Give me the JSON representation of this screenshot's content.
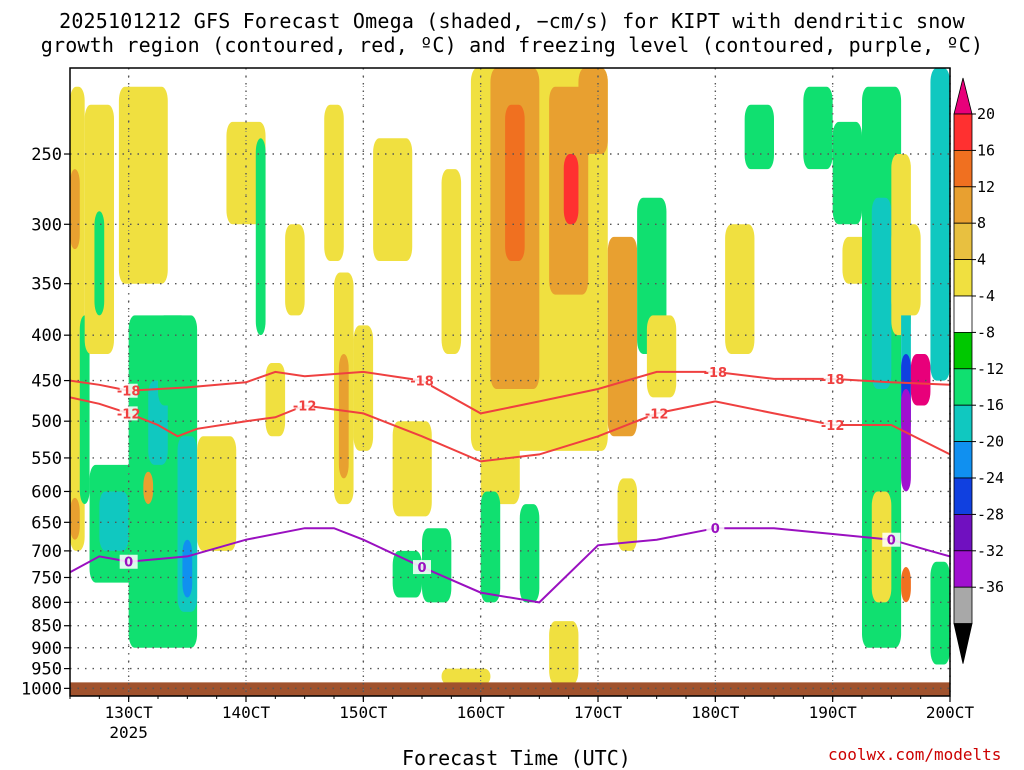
{
  "title_line1": "2025101212 GFS Forecast Omega (shaded, −cm/s) for KIPT with dendritic snow",
  "title_line2": "growth region (contoured, red, ºC) and freezing level (contoured, purple, ºC)",
  "x_axis_label": "Forecast Time (UTC)",
  "credit": "coolwx.com/modelts",
  "chart_data": {
    "type": "heatmap",
    "y_axis": {
      "unit": "hPa",
      "scale": "log-pressure",
      "range": [
        1020,
        200
      ],
      "ticks": [
        250,
        300,
        350,
        400,
        450,
        500,
        550,
        600,
        650,
        700,
        750,
        800,
        850,
        900,
        950,
        1000
      ]
    },
    "x_axis": {
      "unit": "hours since 2025-10-12 12UTC",
      "range": [
        0,
        180
      ],
      "ticks": [
        {
          "h": 12,
          "label": "130CT",
          "sub": "2025"
        },
        {
          "h": 36,
          "label": "140CT",
          "sub": ""
        },
        {
          "h": 60,
          "label": "150CT",
          "sub": ""
        },
        {
          "h": 84,
          "label": "160CT",
          "sub": ""
        },
        {
          "h": 108,
          "label": "170CT",
          "sub": ""
        },
        {
          "h": 132,
          "label": "180CT",
          "sub": ""
        },
        {
          "h": 156,
          "label": "190CT",
          "sub": ""
        },
        {
          "h": 180,
          "label": "200CT",
          "sub": ""
        }
      ]
    },
    "colorbar": {
      "labels": [
        "20",
        "16",
        "12",
        "8",
        "4",
        "-4",
        "-8",
        "-12",
        "-16",
        "-20",
        "-24",
        "-28",
        "-32",
        "-36"
      ],
      "colors": [
        "#e8007a",
        "#ff3030",
        "#f07020",
        "#e8a030",
        "#e8c040",
        "#f0e040",
        "#ffffff",
        "#00c800",
        "#10e070",
        "#10c8c0",
        "#1090f0",
        "#1040e0",
        "#7010c0",
        "#a010d0",
        "#a8a8a8",
        "#000000"
      ]
    },
    "ground_color": "#a0522d",
    "omega_regions": [
      {
        "h0": 0,
        "h1": 3,
        "p0": 210,
        "p1": 700,
        "v": 5
      },
      {
        "h0": 0,
        "h1": 2,
        "p0": 260,
        "p1": 320,
        "v": 9
      },
      {
        "h0": 2,
        "h1": 4,
        "p0": 380,
        "p1": 620,
        "v": -9
      },
      {
        "h0": 3,
        "h1": 9,
        "p0": 220,
        "p1": 420,
        "v": 5
      },
      {
        "h0": 5,
        "h1": 7,
        "p0": 290,
        "p1": 380,
        "v": -9
      },
      {
        "h0": 4,
        "h1": 14,
        "p0": 560,
        "p1": 760,
        "v": -10
      },
      {
        "h0": 6,
        "h1": 12,
        "p0": 600,
        "p1": 700,
        "v": -14
      },
      {
        "h0": 0,
        "h1": 2,
        "p0": 610,
        "p1": 680,
        "v": 9
      },
      {
        "h0": 12,
        "h1": 26,
        "p0": 380,
        "p1": 900,
        "v": -9
      },
      {
        "h0": 16,
        "h1": 20,
        "p0": 450,
        "p1": 560,
        "v": -14
      },
      {
        "h0": 22,
        "h1": 26,
        "p0": 520,
        "p1": 820,
        "v": -14
      },
      {
        "h0": 23,
        "h1": 25,
        "p0": 680,
        "p1": 790,
        "v": -17
      },
      {
        "h0": 15,
        "h1": 17,
        "p0": 570,
        "p1": 620,
        "v": 9
      },
      {
        "h0": 10,
        "h1": 20,
        "p0": 210,
        "p1": 350,
        "v": 5
      },
      {
        "h0": 18,
        "h1": 24,
        "p0": 380,
        "p1": 480,
        "v": -9
      },
      {
        "h0": 26,
        "h1": 34,
        "p0": 520,
        "p1": 700,
        "v": 5
      },
      {
        "h0": 32,
        "h1": 40,
        "p0": 230,
        "p1": 300,
        "v": 5
      },
      {
        "h0": 38,
        "h1": 40,
        "p0": 240,
        "p1": 400,
        "v": -9
      },
      {
        "h0": 44,
        "h1": 48,
        "p0": 300,
        "p1": 380,
        "v": 5
      },
      {
        "h0": 40,
        "h1": 44,
        "p0": 430,
        "p1": 520,
        "v": 5
      },
      {
        "h0": 52,
        "h1": 56,
        "p0": 220,
        "p1": 330,
        "v": 5
      },
      {
        "h0": 54,
        "h1": 58,
        "p0": 340,
        "p1": 620,
        "v": 5
      },
      {
        "h0": 55,
        "h1": 57,
        "p0": 420,
        "p1": 580,
        "v": 9
      },
      {
        "h0": 58,
        "h1": 62,
        "p0": 390,
        "p1": 540,
        "v": 5
      },
      {
        "h0": 62,
        "h1": 70,
        "p0": 240,
        "p1": 330,
        "v": 5
      },
      {
        "h0": 66,
        "h1": 74,
        "p0": 500,
        "p1": 640,
        "v": 5
      },
      {
        "h0": 66,
        "h1": 72,
        "p0": 700,
        "p1": 790,
        "v": -9
      },
      {
        "h0": 72,
        "h1": 78,
        "p0": 660,
        "p1": 800,
        "v": -10
      },
      {
        "h0": 76,
        "h1": 80,
        "p0": 260,
        "p1": 420,
        "v": 5
      },
      {
        "h0": 82,
        "h1": 110,
        "p0": 200,
        "p1": 540,
        "v": 5
      },
      {
        "h0": 86,
        "h1": 96,
        "p0": 200,
        "p1": 460,
        "v": 9
      },
      {
        "h0": 89,
        "h1": 93,
        "p0": 220,
        "p1": 330,
        "v": 13
      },
      {
        "h0": 98,
        "h1": 106,
        "p0": 210,
        "p1": 360,
        "v": 9
      },
      {
        "h0": 101,
        "h1": 104,
        "p0": 250,
        "p1": 300,
        "v": 17
      },
      {
        "h0": 84,
        "h1": 92,
        "p0": 480,
        "p1": 620,
        "v": 5
      },
      {
        "h0": 110,
        "h1": 116,
        "p0": 310,
        "p1": 520,
        "v": 9
      },
      {
        "h0": 104,
        "h1": 110,
        "p0": 200,
        "p1": 250,
        "v": 9
      },
      {
        "h0": 84,
        "h1": 88,
        "p0": 600,
        "p1": 800,
        "v": -9
      },
      {
        "h0": 92,
        "h1": 96,
        "p0": 620,
        "p1": 800,
        "v": -9
      },
      {
        "h0": 98,
        "h1": 104,
        "p0": 840,
        "p1": 990,
        "v": 5
      },
      {
        "h0": 76,
        "h1": 86,
        "p0": 950,
        "p1": 990,
        "v": 5
      },
      {
        "h0": 116,
        "h1": 122,
        "p0": 280,
        "p1": 420,
        "v": -9
      },
      {
        "h0": 118,
        "h1": 124,
        "p0": 380,
        "p1": 470,
        "v": 5
      },
      {
        "h0": 112,
        "h1": 116,
        "p0": 580,
        "p1": 700,
        "v": 5
      },
      {
        "h0": 134,
        "h1": 140,
        "p0": 300,
        "p1": 420,
        "v": 5
      },
      {
        "h0": 138,
        "h1": 144,
        "p0": 220,
        "p1": 260,
        "v": -9
      },
      {
        "h0": 150,
        "h1": 156,
        "p0": 210,
        "p1": 260,
        "v": -9
      },
      {
        "h0": 156,
        "h1": 162,
        "p0": 230,
        "p1": 300,
        "v": -9
      },
      {
        "h0": 158,
        "h1": 164,
        "p0": 310,
        "p1": 350,
        "v": 5
      },
      {
        "h0": 162,
        "h1": 170,
        "p0": 210,
        "p1": 900,
        "v": -9
      },
      {
        "h0": 164,
        "h1": 168,
        "p0": 280,
        "p1": 460,
        "v": -13
      },
      {
        "h0": 164,
        "h1": 168,
        "p0": 600,
        "p1": 800,
        "v": 5
      },
      {
        "h0": 168,
        "h1": 172,
        "p0": 250,
        "p1": 400,
        "v": 5
      },
      {
        "h0": 170,
        "h1": 172,
        "p0": 350,
        "p1": 470,
        "v": -13
      },
      {
        "h0": 170,
        "h1": 172,
        "p0": 420,
        "p1": 520,
        "v": -21
      },
      {
        "h0": 170,
        "h1": 172,
        "p0": 460,
        "p1": 600,
        "v": -29
      },
      {
        "h0": 172,
        "h1": 176,
        "p0": 420,
        "p1": 480,
        "v": 21
      },
      {
        "h0": 176,
        "h1": 180,
        "p0": 200,
        "p1": 450,
        "v": -13
      },
      {
        "h0": 176,
        "h1": 180,
        "p0": 720,
        "p1": 940,
        "v": -9
      },
      {
        "h0": 170,
        "h1": 172,
        "p0": 730,
        "p1": 800,
        "v": 13
      },
      {
        "h0": 168,
        "h1": 174,
        "p0": 300,
        "p1": 380,
        "v": 5
      }
    ],
    "dgz_contours": [
      {
        "label": "-18",
        "points": [
          [
            0,
            450
          ],
          [
            6,
            455
          ],
          [
            12,
            462
          ],
          [
            24,
            458
          ],
          [
            36,
            452
          ],
          [
            42,
            440
          ],
          [
            48,
            445
          ],
          [
            60,
            440
          ],
          [
            72,
            450
          ],
          [
            84,
            490
          ],
          [
            96,
            475
          ],
          [
            108,
            460
          ],
          [
            120,
            440
          ],
          [
            132,
            440
          ],
          [
            144,
            448
          ],
          [
            156,
            448
          ],
          [
            168,
            452
          ],
          [
            180,
            455
          ]
        ]
      },
      {
        "label": "-12",
        "points": [
          [
            0,
            470
          ],
          [
            6,
            478
          ],
          [
            12,
            490
          ],
          [
            18,
            505
          ],
          [
            22,
            520
          ],
          [
            26,
            510
          ],
          [
            36,
            500
          ],
          [
            42,
            495
          ],
          [
            48,
            480
          ],
          [
            60,
            490
          ],
          [
            72,
            520
          ],
          [
            84,
            555
          ],
          [
            96,
            545
          ],
          [
            108,
            520
          ],
          [
            120,
            490
          ],
          [
            132,
            475
          ],
          [
            144,
            490
          ],
          [
            156,
            505
          ],
          [
            168,
            505
          ],
          [
            180,
            545
          ]
        ]
      }
    ],
    "freezing_contour": {
      "label": "0",
      "points": [
        [
          0,
          740
        ],
        [
          6,
          710
        ],
        [
          12,
          720
        ],
        [
          24,
          710
        ],
        [
          36,
          680
        ],
        [
          48,
          660
        ],
        [
          54,
          660
        ],
        [
          60,
          680
        ],
        [
          72,
          730
        ],
        [
          84,
          780
        ],
        [
          96,
          800
        ],
        [
          108,
          690
        ],
        [
          120,
          680
        ],
        [
          132,
          660
        ],
        [
          144,
          660
        ],
        [
          156,
          670
        ],
        [
          168,
          680
        ],
        [
          176,
          700
        ],
        [
          180,
          710
        ]
      ]
    }
  }
}
